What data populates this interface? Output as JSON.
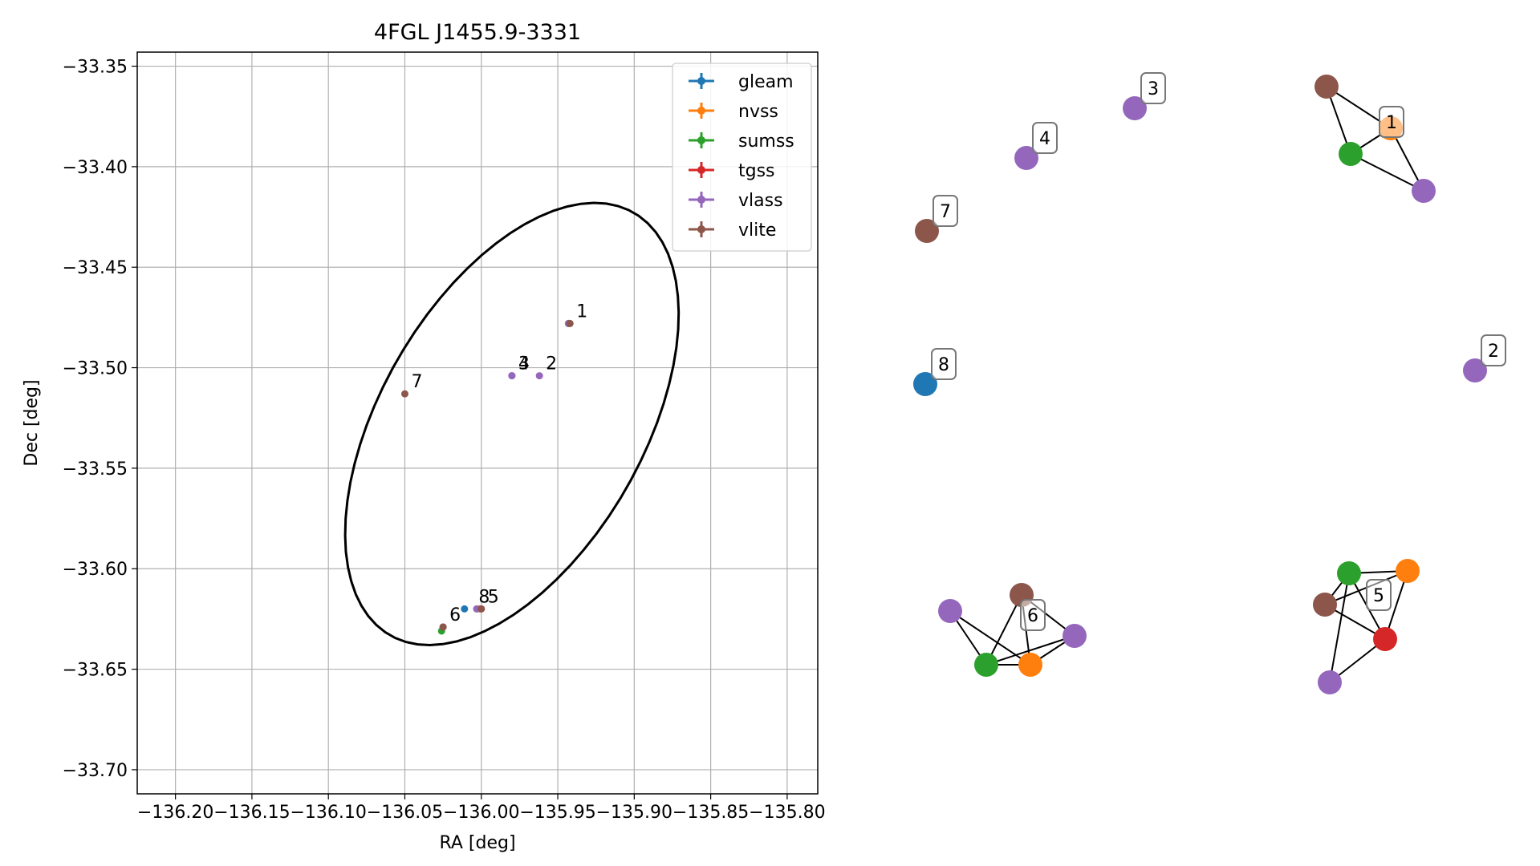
{
  "chart_data": [
    {
      "type": "scatter",
      "title": "4FGL J1455.9-3331",
      "xlabel": "RA [deg]",
      "ylabel": "Dec [deg]",
      "xlim": [
        -136.225,
        -135.78
      ],
      "ylim": [
        -33.712,
        -33.343
      ],
      "xticks": [
        -136.2,
        -136.15,
        -136.1,
        -136.05,
        -136.0,
        -135.95,
        -135.9,
        -135.85,
        -135.8
      ],
      "xtick_labels": [
        "−136.20",
        "−136.15",
        "−136.10",
        "−136.05",
        "−136.00",
        "−135.95",
        "−135.90",
        "−135.85",
        "−135.80"
      ],
      "yticks": [
        -33.35,
        -33.4,
        -33.45,
        -33.5,
        -33.55,
        -33.6,
        -33.65,
        -33.7
      ],
      "ytick_labels": [
        "−33.35",
        "−33.40",
        "−33.45",
        "−33.50",
        "−33.55",
        "−33.60",
        "−33.65",
        "−33.70"
      ],
      "grid": true,
      "legend_position": "top-right",
      "series": [
        {
          "name": "gleam",
          "color": "#1f77b4",
          "points": [
            {
              "x": -136.011,
              "y": -33.62
            }
          ]
        },
        {
          "name": "nvss",
          "color": "#ff7f0e",
          "points": [
            {
              "x": -135.943,
              "y": -33.478
            },
            {
              "x": -136.001,
              "y": -33.62
            },
            {
              "x": -136.025,
              "y": -33.629
            }
          ]
        },
        {
          "name": "sumss",
          "color": "#2ca02c",
          "points": [
            {
              "x": -135.943,
              "y": -33.478
            },
            {
              "x": -136.003,
              "y": -33.62
            },
            {
              "x": -136.026,
              "y": -33.631
            }
          ]
        },
        {
          "name": "tgss",
          "color": "#d62728",
          "points": [
            {
              "x": -136.0,
              "y": -33.62
            }
          ]
        },
        {
          "name": "vlass",
          "color": "#9467bd",
          "points": [
            {
              "x": -135.943,
              "y": -33.478
            },
            {
              "x": -135.962,
              "y": -33.504
            },
            {
              "x": -135.98,
              "y": -33.504
            },
            {
              "x": -135.98,
              "y": -33.504
            },
            {
              "x": -136.003,
              "y": -33.62
            },
            {
              "x": -136.025,
              "y": -33.629
            }
          ]
        },
        {
          "name": "vlite",
          "color": "#8c564b",
          "points": [
            {
              "x": -135.942,
              "y": -33.478
            },
            {
              "x": -136.0,
              "y": -33.62
            },
            {
              "x": -136.025,
              "y": -33.629
            },
            {
              "x": -136.05,
              "y": -33.513
            }
          ]
        }
      ],
      "annotations": [
        {
          "text": "1",
          "x": -135.942,
          "y": -33.478
        },
        {
          "text": "2",
          "x": -135.962,
          "y": -33.504
        },
        {
          "text": "3",
          "x": -135.98,
          "y": -33.504
        },
        {
          "text": "4",
          "x": -135.98,
          "y": -33.504
        },
        {
          "text": "5",
          "x": -136.0,
          "y": -33.62
        },
        {
          "text": "6",
          "x": -136.025,
          "y": -33.629
        },
        {
          "text": "7",
          "x": -136.05,
          "y": -33.513
        },
        {
          "text": "8",
          "x": -136.006,
          "y": -33.62
        }
      ],
      "ellipse": {
        "center_ra": -135.98,
        "center_dec": -33.528,
        "semi_major": 0.134,
        "semi_minor": 0.0777,
        "rotation_deg": 45.5,
        "color": "#000000"
      }
    },
    {
      "type": "network",
      "components": [
        {
          "label": "1",
          "nodes": [
            "vlite",
            "nvss",
            "sumss",
            "vlass"
          ],
          "edges": [
            [
              0,
              1
            ],
            [
              0,
              2
            ],
            [
              1,
              2
            ],
            [
              1,
              3
            ],
            [
              2,
              3
            ]
          ]
        },
        {
          "label": "2",
          "nodes": [
            "vlass"
          ],
          "edges": []
        },
        {
          "label": "3",
          "nodes": [
            "vlass"
          ],
          "edges": []
        },
        {
          "label": "4",
          "nodes": [
            "vlass"
          ],
          "edges": []
        },
        {
          "label": "5",
          "nodes": [
            "sumss",
            "nvss",
            "vlite",
            "tgss",
            "vlass"
          ],
          "edges": [
            [
              0,
              1
            ],
            [
              0,
              2
            ],
            [
              0,
              3
            ],
            [
              0,
              4
            ],
            [
              2,
              1
            ],
            [
              2,
              3
            ],
            [
              1,
              3
            ],
            [
              3,
              4
            ]
          ]
        },
        {
          "label": "6",
          "nodes": [
            "vlite",
            "vlass",
            "sumss",
            "nvss",
            "vlass"
          ],
          "edges": [
            [
              0,
              2
            ],
            [
              0,
              3
            ],
            [
              0,
              4
            ],
            [
              1,
              2
            ],
            [
              1,
              3
            ],
            [
              2,
              3
            ],
            [
              3,
              4
            ],
            [
              2,
              4
            ]
          ]
        },
        {
          "label": "7",
          "nodes": [
            "vlite"
          ],
          "edges": []
        },
        {
          "label": "8",
          "nodes": [
            "gleam"
          ],
          "edges": []
        }
      ]
    }
  ]
}
